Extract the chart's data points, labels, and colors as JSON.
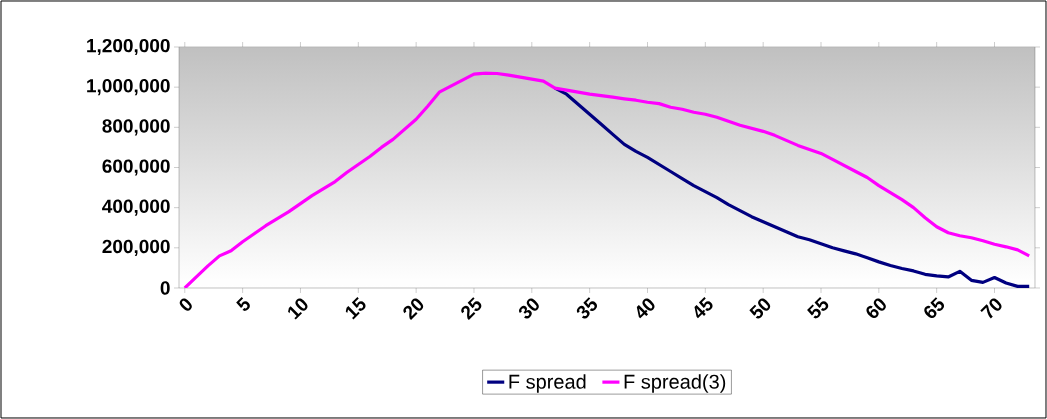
{
  "chart_data": {
    "type": "line",
    "x": [
      0,
      1,
      2,
      3,
      4,
      5,
      6,
      7,
      8,
      9,
      10,
      11,
      12,
      13,
      14,
      15,
      16,
      17,
      18,
      19,
      20,
      21,
      22,
      23,
      24,
      25,
      26,
      27,
      28,
      29,
      30,
      31,
      32,
      33,
      34,
      35,
      36,
      37,
      38,
      39,
      40,
      41,
      42,
      43,
      44,
      45,
      46,
      47,
      48,
      49,
      50,
      51,
      52,
      53,
      54,
      55,
      56,
      57,
      58,
      59,
      60,
      61,
      62,
      63,
      64,
      65,
      66,
      67,
      68,
      69,
      70,
      71,
      72,
      73
    ],
    "series": [
      {
        "name": "F spread",
        "color": "#000080",
        "values": [
          null,
          null,
          null,
          null,
          null,
          null,
          null,
          null,
          null,
          null,
          null,
          null,
          null,
          null,
          null,
          null,
          null,
          null,
          null,
          null,
          null,
          null,
          null,
          null,
          null,
          null,
          null,
          null,
          null,
          null,
          null,
          null,
          995000,
          965000,
          915000,
          865000,
          815000,
          765000,
          715000,
          680000,
          650000,
          615000,
          580000,
          545000,
          510000,
          480000,
          450000,
          415000,
          385000,
          355000,
          330000,
          305000,
          280000,
          255000,
          240000,
          220000,
          200000,
          185000,
          170000,
          150000,
          130000,
          112000,
          97000,
          85000,
          68000,
          60000,
          55000,
          83000,
          38000,
          28000,
          52000,
          25000,
          8000,
          8000
        ]
      },
      {
        "name": "F spread(3)",
        "color": "#ff00ff",
        "values": [
          0,
          55000,
          110000,
          160000,
          185000,
          230000,
          270000,
          310000,
          345000,
          380000,
          420000,
          460000,
          495000,
          530000,
          575000,
          615000,
          655000,
          700000,
          740000,
          790000,
          840000,
          905000,
          975000,
          1005000,
          1035000,
          1065000,
          1070000,
          1068000,
          1060000,
          1050000,
          1040000,
          1030000,
          995000,
          985000,
          975000,
          965000,
          958000,
          950000,
          942000,
          935000,
          925000,
          918000,
          900000,
          890000,
          875000,
          865000,
          850000,
          830000,
          810000,
          795000,
          780000,
          760000,
          735000,
          710000,
          690000,
          670000,
          640000,
          610000,
          580000,
          550000,
          510000,
          475000,
          440000,
          400000,
          350000,
          305000,
          275000,
          260000,
          250000,
          235000,
          218000,
          205000,
          190000,
          160000
        ]
      }
    ],
    "xlim": [
      -0.5,
      73.5
    ],
    "xticks": [
      0,
      5,
      10,
      15,
      20,
      25,
      30,
      35,
      40,
      45,
      50,
      55,
      60,
      65,
      70
    ],
    "ylim": [
      0,
      1200000
    ],
    "yticks": [
      {
        "value": 0,
        "label": "0"
      },
      {
        "value": 200000,
        "label": "200,000"
      },
      {
        "value": 400000,
        "label": "400,000"
      },
      {
        "value": 600000,
        "label": "600,000"
      },
      {
        "value": 800000,
        "label": "800,000"
      },
      {
        "value": 1000000,
        "label": "1,000,000"
      },
      {
        "value": 1200000,
        "label": "1,200,000"
      }
    ],
    "grid": false,
    "legend": "bottom",
    "marker": "none",
    "line_style": "solid"
  }
}
